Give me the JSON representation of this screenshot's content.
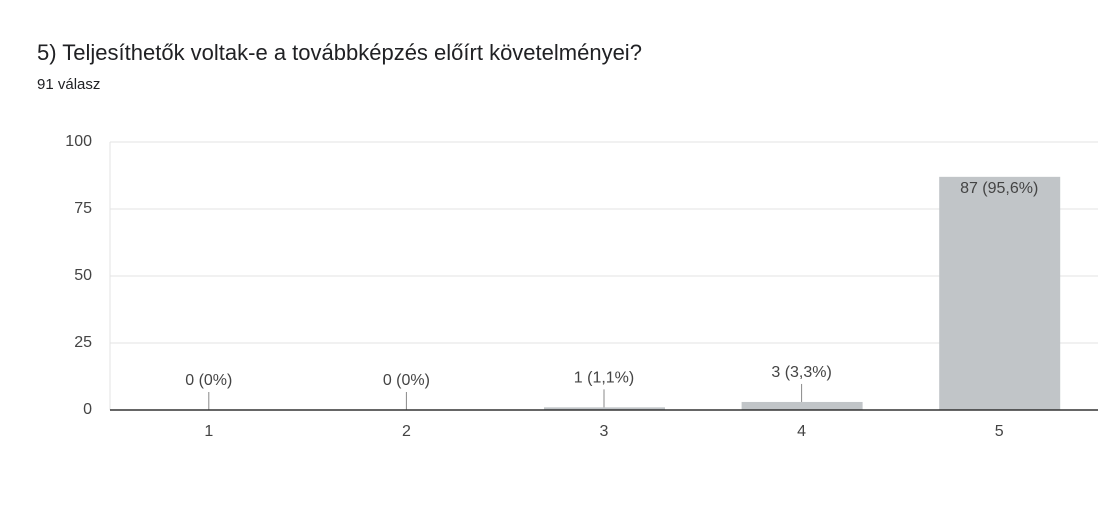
{
  "chart_data": {
    "type": "bar",
    "title": "5) Teljesíthetők voltak-e a továbbképzés előírt követelményei?",
    "subtitle": "91 válasz",
    "categories": [
      "1",
      "2",
      "3",
      "4",
      "5"
    ],
    "values": [
      0,
      0,
      1,
      3,
      87
    ],
    "value_labels": [
      "0 (0%)",
      "0 (0%)",
      "1 (1,1%)",
      "3 (3,3%)",
      "87 (95,6%)"
    ],
    "color": "#c1c5c8",
    "ylim": [
      0,
      100
    ],
    "yticks": [
      0,
      25,
      50,
      75,
      100
    ],
    "grid": true
  }
}
